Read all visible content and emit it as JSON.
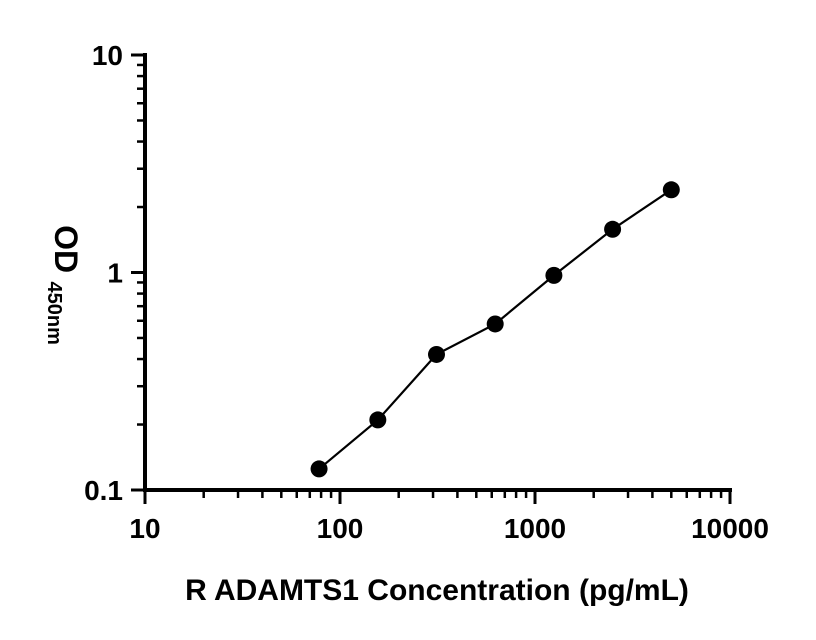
{
  "chart_data": {
    "type": "scatter",
    "xlabel": "R ADAMTS1 Concentration (pg/mL)",
    "ylabel": "OD450nm",
    "ylabel_main": "OD",
    "ylabel_sub": "450nm",
    "xscale": "log",
    "yscale": "log",
    "xlim": [
      10,
      10000
    ],
    "ylim": [
      0.1,
      10
    ],
    "x_tick_labels": [
      "10",
      "100",
      "1000",
      "10000"
    ],
    "y_tick_labels": [
      "0.1",
      "1",
      "10"
    ],
    "grid": false,
    "legend": false,
    "marker_color": "#000000",
    "line_color": "#000000",
    "points": [
      {
        "x": 78.1,
        "y": 0.125
      },
      {
        "x": 156.3,
        "y": 0.21
      },
      {
        "x": 312.5,
        "y": 0.42
      },
      {
        "x": 625,
        "y": 0.58
      },
      {
        "x": 1250,
        "y": 0.97
      },
      {
        "x": 2500,
        "y": 1.58
      },
      {
        "x": 5000,
        "y": 2.4
      }
    ]
  }
}
